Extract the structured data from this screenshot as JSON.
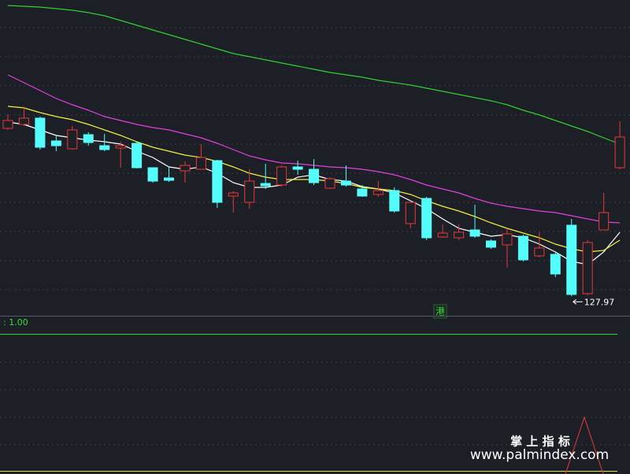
{
  "chart_data": {
    "type": "candlestick",
    "ylim": [
      125.6,
      165.6
    ],
    "up_color": "#e8383a",
    "down_color": "#54fcfc",
    "open": [
      149.3,
      149.8,
      150.6,
      147.7,
      146.7,
      148.5,
      147.1,
      146.8,
      147.4,
      144.3,
      143.0,
      143.9,
      144.1,
      145.2,
      140.7,
      139.9,
      142.3,
      142.1,
      144.4,
      144.1,
      141.7,
      142.6,
      141.6,
      140.9,
      141.4,
      137.2,
      140.4,
      135.5,
      135.4,
      136.4,
      135.0,
      134.5,
      135.6,
      133.1,
      133.3,
      137.0,
      128.3,
      136.4,
      144.3
    ],
    "high": [
      151.1,
      152.1,
      150.8,
      148.4,
      149.6,
      148.8,
      148.6,
      147.6,
      147.6,
      144.3,
      144.4,
      145.1,
      147.3,
      145.3,
      141.3,
      144.1,
      144.8,
      144.6,
      145.2,
      145.4,
      143.1,
      144.6,
      142.1,
      142.6,
      141.8,
      140.1,
      140.6,
      137.1,
      137.1,
      139.6,
      135.2,
      136.6,
      135.8,
      136.1,
      133.6,
      137.8,
      135.1,
      141.1,
      150.2
    ],
    "low": [
      149.1,
      149.6,
      146.6,
      146.4,
      146.6,
      147.1,
      146.4,
      144.3,
      144.2,
      142.4,
      142.5,
      142.4,
      144.1,
      139.2,
      138.6,
      139.1,
      141.6,
      141.9,
      143.4,
      142.1,
      141.6,
      141.9,
      140.6,
      140.6,
      138.6,
      136.6,
      135.1,
      135.4,
      135.1,
      135.4,
      134.0,
      131.6,
      132.4,
      132.9,
      130.4,
      127.97,
      128.1,
      136.4,
      144.1
    ],
    "close": [
      150.3,
      150.6,
      146.9,
      147.1,
      149.1,
      147.5,
      146.6,
      147.1,
      144.3,
      142.6,
      142.7,
      144.6,
      145.6,
      139.9,
      141.1,
      142.6,
      142.0,
      144.4,
      144.1,
      142.4,
      142.9,
      142.1,
      140.7,
      141.4,
      138.8,
      139.9,
      135.4,
      136.0,
      136.1,
      135.6,
      134.2,
      135.9,
      132.6,
      134.1,
      130.8,
      128.2,
      134.8,
      138.6,
      148.2
    ],
    "series": [
      {
        "color": "#ffffff",
        "values": [
          150.1,
          149.8,
          149.1,
          148.4,
          148.1,
          147.8,
          147.6,
          147.3,
          146.4,
          145.6,
          144.4,
          144.1,
          144.4,
          143.6,
          142.4,
          141.8,
          141.8,
          142.1,
          143.1,
          143.4,
          142.8,
          142.6,
          141.9,
          141.6,
          141.1,
          140.1,
          139.1,
          137.8,
          136.6,
          136.1,
          135.6,
          135.8,
          135.4,
          134.6,
          133.6,
          132.4,
          132.0,
          133.6,
          136.1
        ]
      },
      {
        "color": "#f0f040",
        "values": [
          152.1,
          151.9,
          151.3,
          150.8,
          150.4,
          149.8,
          149.1,
          148.4,
          147.6,
          146.9,
          146.4,
          145.9,
          145.6,
          145.1,
          144.4,
          143.6,
          143.1,
          142.8,
          142.8,
          142.8,
          142.6,
          142.3,
          141.8,
          141.6,
          141.4,
          140.9,
          140.1,
          139.4,
          138.8,
          138.1,
          137.3,
          136.6,
          136.0,
          135.4,
          134.6,
          134.0,
          133.6,
          133.8,
          135.1
        ]
      },
      {
        "color": "#e040e0",
        "values": [
          156.1,
          155.1,
          154.1,
          153.1,
          152.3,
          151.6,
          150.8,
          150.3,
          149.8,
          149.4,
          149.1,
          148.6,
          148.1,
          147.4,
          146.6,
          145.8,
          145.3,
          144.9,
          144.8,
          144.6,
          144.4,
          144.3,
          144.1,
          143.8,
          143.4,
          142.8,
          142.1,
          141.6,
          141.1,
          140.4,
          139.8,
          139.4,
          139.1,
          138.8,
          138.6,
          138.2,
          137.8,
          137.4,
          137.3
        ]
      },
      {
        "color": "#30d030",
        "values": [
          164.9,
          164.8,
          164.7,
          164.5,
          164.3,
          164.0,
          163.6,
          163.0,
          162.4,
          161.8,
          161.2,
          160.6,
          160.0,
          159.4,
          158.8,
          158.4,
          158.0,
          157.6,
          157.2,
          156.8,
          156.4,
          156.1,
          155.8,
          155.4,
          155.1,
          154.8,
          154.4,
          154.0,
          153.6,
          153.2,
          152.8,
          152.3,
          151.6,
          151.0,
          150.3,
          149.6,
          148.9,
          148.1,
          147.3
        ]
      }
    ],
    "low_annotation": "127.97",
    "badge": "港",
    "indicator_label": ": 1.00",
    "watermark_title": "掌 上 指 标",
    "watermark_url": "www.palmindex.com"
  }
}
